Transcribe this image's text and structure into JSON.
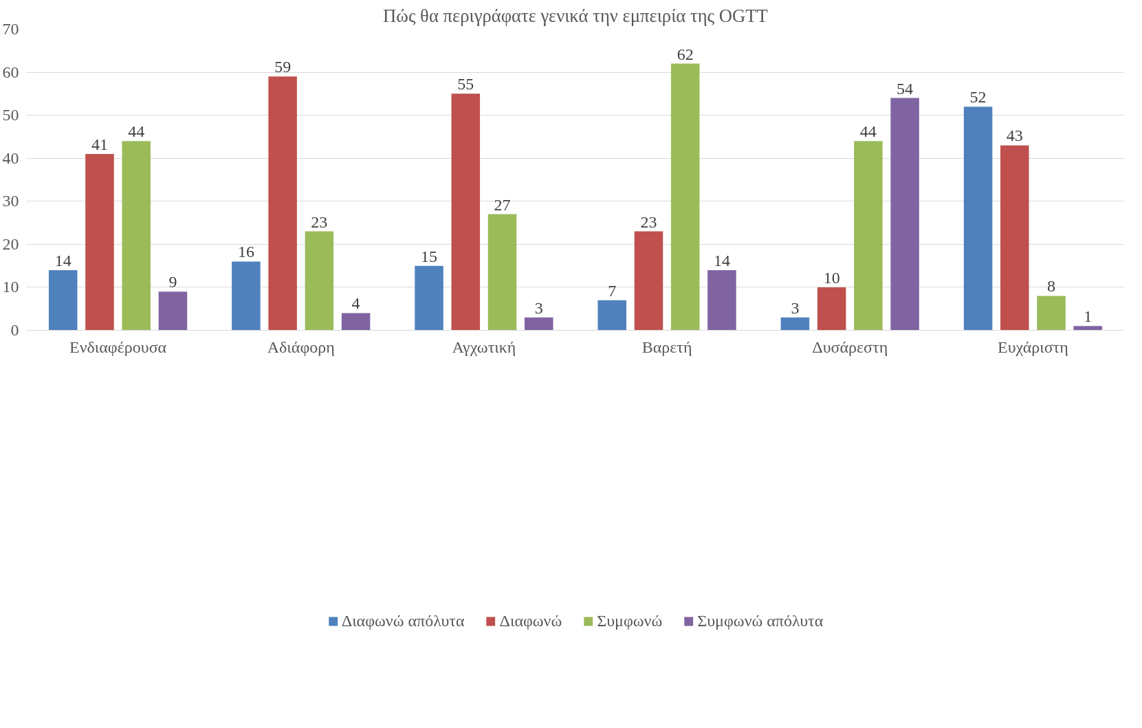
{
  "chart_data": {
    "type": "bar",
    "title": "Πώς θα περιγράφατε γενικά την εμπειρία της OGTT",
    "categories": [
      "Ενδιαφέρουσα",
      "Αδιάφορη",
      "Αγχωτική",
      "Βαρετή",
      "Δυσάρεστη",
      "Ευχάριστη"
    ],
    "series": [
      {
        "name": "Διαφωνώ απόλυτα",
        "color": "#4f81bd",
        "values": [
          14,
          16,
          15,
          7,
          3,
          52
        ]
      },
      {
        "name": "Διαφωνώ",
        "color": "#c0504d",
        "values": [
          41,
          59,
          55,
          23,
          10,
          43
        ]
      },
      {
        "name": "Συμφωνώ",
        "color": "#9bbb59",
        "values": [
          44,
          23,
          27,
          62,
          44,
          8
        ]
      },
      {
        "name": "Συμφωνώ απόλυτα",
        "color": "#8064a2",
        "values": [
          9,
          4,
          3,
          14,
          54,
          1
        ]
      }
    ],
    "ylim": [
      0,
      70
    ],
    "yticks": [
      0,
      10,
      20,
      30,
      40,
      50,
      60,
      70
    ],
    "grid": "y",
    "legend": "bottom",
    "data_labels": true
  }
}
